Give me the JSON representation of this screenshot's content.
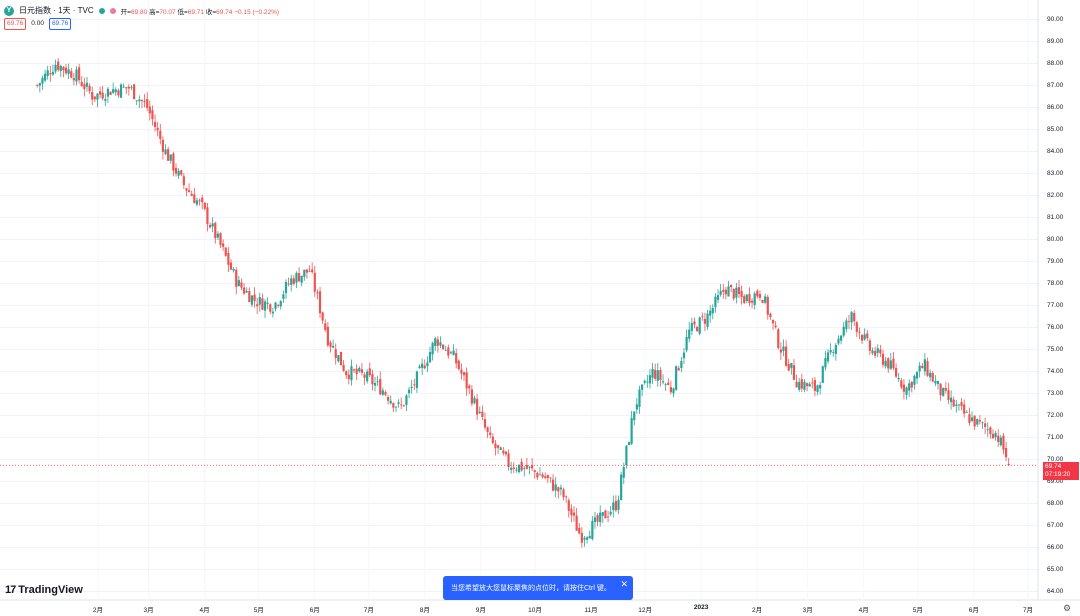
{
  "legend": {
    "symbol_badge": "Y",
    "symbol_title": "日元指数 · 1天 · TVC",
    "open_label": "开=",
    "open_value": "69.80",
    "high_label": "高=",
    "high_value": "70.07",
    "low_label": "低=",
    "low_value": "69.71",
    "close_label": "收=",
    "close_value": "69.74",
    "change": "−0.15 (−0.22%)",
    "indicator_value_1": "69.76",
    "indicator_value_2": "0.00",
    "indicator_value_3": "69.76"
  },
  "price_axis": {
    "ticks": [
      "90.00",
      "89.00",
      "88.00",
      "87.00",
      "86.00",
      "85.00",
      "84.00",
      "83.00",
      "82.00",
      "81.00",
      "80.00",
      "79.00",
      "78.00",
      "77.00",
      "76.00",
      "75.00",
      "74.00",
      "73.00",
      "72.00",
      "71.00",
      "70.00",
      "69.00",
      "68.00",
      "67.00",
      "66.00",
      "65.00",
      "64.00"
    ]
  },
  "time_axis": {
    "labels": [
      "2月",
      "3月",
      "4月",
      "5月",
      "6月",
      "7月",
      "8月",
      "9月",
      "10月",
      "11月",
      "12月",
      "2023",
      "2月",
      "3月",
      "4月",
      "5月",
      "6月",
      "7月"
    ]
  },
  "last_price": {
    "value": "69.74",
    "countdown": "07:19:20"
  },
  "logo": {
    "mark": "17",
    "text": "TradingView"
  },
  "toast": {
    "message": "当您希望放大您鼠标聚焦的点位时，请按住Ctrl 键。"
  },
  "colors": {
    "up": "#26a69a",
    "down": "#ef5350",
    "accent": "#2962ff",
    "last_price": "#f23645"
  },
  "chart_data": {
    "type": "candlestick",
    "symbol": "日元指数",
    "interval": "1天",
    "ylim": [
      64,
      90
    ],
    "x": [
      "2022-01-05",
      "2022-01-15",
      "2022-01-26",
      "2022-02-05",
      "2022-02-15",
      "2022-02-25",
      "2022-03-07",
      "2022-03-17",
      "2022-03-27",
      "2022-04-06",
      "2022-04-16",
      "2022-04-26",
      "2022-05-06",
      "2022-05-16",
      "2022-05-26",
      "2022-06-05",
      "2022-06-15",
      "2022-06-25",
      "2022-07-05",
      "2022-07-15",
      "2022-07-25",
      "2022-08-04",
      "2022-08-14",
      "2022-08-24",
      "2022-09-03",
      "2022-09-13",
      "2022-09-23",
      "2022-10-03",
      "2022-10-13",
      "2022-10-23",
      "2022-11-02",
      "2022-11-12",
      "2022-11-22",
      "2022-12-02",
      "2022-12-12",
      "2022-12-22",
      "2023-01-01",
      "2023-01-11",
      "2023-01-21",
      "2023-01-31",
      "2023-02-10",
      "2023-02-20",
      "2023-03-02",
      "2023-03-12",
      "2023-03-22",
      "2023-04-01",
      "2023-04-11",
      "2023-04-21",
      "2023-05-01",
      "2023-05-11",
      "2023-05-21",
      "2023-05-31",
      "2023-06-10",
      "2023-06-20",
      "2023-06-28"
    ],
    "close": [
      87.0,
      88.0,
      87.5,
      86.5,
      86.8,
      86.9,
      86.0,
      84.0,
      82.5,
      81.5,
      79.8,
      78.0,
      77.2,
      77.0,
      78.2,
      78.6,
      75.5,
      74.0,
      73.8,
      73.2,
      72.3,
      73.8,
      75.5,
      74.6,
      72.8,
      70.8,
      69.8,
      69.6,
      69.2,
      68.4,
      66.5,
      67.2,
      68.0,
      72.5,
      74.0,
      73.2,
      75.8,
      76.5,
      77.8,
      77.3,
      77.6,
      75.2,
      73.5,
      73.2,
      75.2,
      76.5,
      75.0,
      74.4,
      73.2,
      74.3,
      73.0,
      72.2,
      71.6,
      71.2,
      69.74
    ]
  }
}
